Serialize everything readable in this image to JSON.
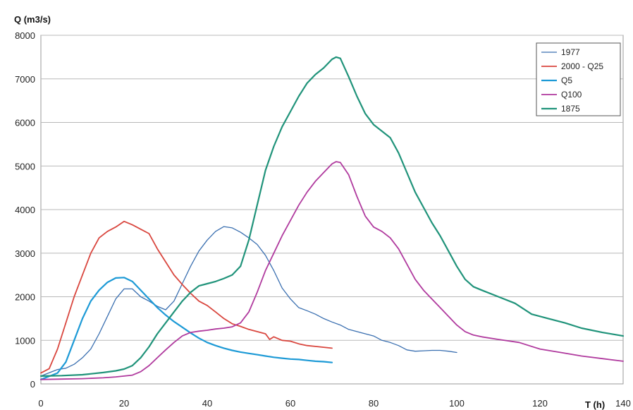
{
  "chart_data": {
    "type": "line",
    "xlabel": "T (h)",
    "ylabel": "Q (m3/s)",
    "xlim": [
      0,
      140
    ],
    "ylim": [
      0,
      8000
    ],
    "xticks": [
      0,
      20,
      40,
      60,
      80,
      100,
      120,
      140
    ],
    "yticks": [
      0,
      1000,
      2000,
      3000,
      4000,
      5000,
      6000,
      7000,
      8000
    ],
    "grid": "horizontal",
    "legend_position": "top-right",
    "series": [
      {
        "name": "1977",
        "color": "#3a6fb0",
        "width": 1.3,
        "points": [
          [
            0,
            180
          ],
          [
            4,
            330
          ],
          [
            6,
            360
          ],
          [
            8,
            450
          ],
          [
            10,
            600
          ],
          [
            12,
            800
          ],
          [
            14,
            1150
          ],
          [
            16,
            1550
          ],
          [
            18,
            1950
          ],
          [
            20,
            2180
          ],
          [
            22,
            2180
          ],
          [
            24,
            2000
          ],
          [
            26,
            1900
          ],
          [
            28,
            1780
          ],
          [
            30,
            1700
          ],
          [
            32,
            1900
          ],
          [
            34,
            2300
          ],
          [
            36,
            2700
          ],
          [
            38,
            3050
          ],
          [
            40,
            3300
          ],
          [
            42,
            3500
          ],
          [
            44,
            3610
          ],
          [
            46,
            3580
          ],
          [
            48,
            3480
          ],
          [
            50,
            3350
          ],
          [
            52,
            3200
          ],
          [
            54,
            2950
          ],
          [
            56,
            2600
          ],
          [
            58,
            2200
          ],
          [
            60,
            1950
          ],
          [
            62,
            1750
          ],
          [
            64,
            1680
          ],
          [
            66,
            1600
          ],
          [
            68,
            1500
          ],
          [
            70,
            1420
          ],
          [
            72,
            1350
          ],
          [
            74,
            1250
          ],
          [
            76,
            1200
          ],
          [
            78,
            1150
          ],
          [
            80,
            1100
          ],
          [
            82,
            1000
          ],
          [
            84,
            950
          ],
          [
            86,
            880
          ],
          [
            88,
            780
          ],
          [
            90,
            750
          ],
          [
            92,
            760
          ],
          [
            94,
            770
          ],
          [
            96,
            770
          ],
          [
            98,
            750
          ],
          [
            100,
            720
          ]
        ]
      },
      {
        "name": "2000 - Q25",
        "color": "#d9463e",
        "width": 1.8,
        "points": [
          [
            0,
            250
          ],
          [
            2,
            350
          ],
          [
            4,
            800
          ],
          [
            6,
            1400
          ],
          [
            8,
            2000
          ],
          [
            10,
            2500
          ],
          [
            12,
            3000
          ],
          [
            14,
            3350
          ],
          [
            16,
            3500
          ],
          [
            18,
            3600
          ],
          [
            20,
            3730
          ],
          [
            22,
            3650
          ],
          [
            24,
            3550
          ],
          [
            26,
            3450
          ],
          [
            28,
            3100
          ],
          [
            30,
            2800
          ],
          [
            32,
            2500
          ],
          [
            34,
            2280
          ],
          [
            36,
            2080
          ],
          [
            38,
            1900
          ],
          [
            40,
            1800
          ],
          [
            42,
            1650
          ],
          [
            44,
            1500
          ],
          [
            46,
            1380
          ],
          [
            48,
            1320
          ],
          [
            50,
            1250
          ],
          [
            52,
            1200
          ],
          [
            54,
            1150
          ],
          [
            55,
            1020
          ],
          [
            56,
            1080
          ],
          [
            58,
            1000
          ],
          [
            60,
            980
          ],
          [
            62,
            920
          ],
          [
            64,
            880
          ],
          [
            66,
            860
          ],
          [
            68,
            840
          ],
          [
            70,
            820
          ]
        ]
      },
      {
        "name": "Q5",
        "color": "#1d9ad6",
        "width": 2.2,
        "points": [
          [
            0,
            100
          ],
          [
            4,
            250
          ],
          [
            6,
            500
          ],
          [
            8,
            1000
          ],
          [
            10,
            1500
          ],
          [
            12,
            1900
          ],
          [
            14,
            2150
          ],
          [
            16,
            2330
          ],
          [
            18,
            2430
          ],
          [
            20,
            2440
          ],
          [
            22,
            2350
          ],
          [
            24,
            2150
          ],
          [
            26,
            1950
          ],
          [
            28,
            1750
          ],
          [
            30,
            1580
          ],
          [
            32,
            1430
          ],
          [
            34,
            1300
          ],
          [
            36,
            1170
          ],
          [
            38,
            1050
          ],
          [
            40,
            950
          ],
          [
            42,
            880
          ],
          [
            44,
            820
          ],
          [
            46,
            770
          ],
          [
            48,
            730
          ],
          [
            50,
            700
          ],
          [
            52,
            670
          ],
          [
            54,
            640
          ],
          [
            56,
            610
          ],
          [
            58,
            590
          ],
          [
            60,
            570
          ],
          [
            62,
            560
          ],
          [
            64,
            540
          ],
          [
            66,
            520
          ],
          [
            68,
            510
          ],
          [
            70,
            490
          ]
        ]
      },
      {
        "name": "Q100",
        "color": "#b03a9e",
        "width": 1.8,
        "points": [
          [
            0,
            100
          ],
          [
            5,
            110
          ],
          [
            10,
            120
          ],
          [
            15,
            140
          ],
          [
            18,
            160
          ],
          [
            20,
            180
          ],
          [
            22,
            200
          ],
          [
            24,
            280
          ],
          [
            26,
            420
          ],
          [
            28,
            600
          ],
          [
            30,
            780
          ],
          [
            32,
            950
          ],
          [
            34,
            1100
          ],
          [
            36,
            1180
          ],
          [
            38,
            1210
          ],
          [
            40,
            1230
          ],
          [
            42,
            1260
          ],
          [
            44,
            1280
          ],
          [
            46,
            1310
          ],
          [
            48,
            1400
          ],
          [
            50,
            1650
          ],
          [
            52,
            2100
          ],
          [
            54,
            2600
          ],
          [
            56,
            3000
          ],
          [
            58,
            3400
          ],
          [
            60,
            3750
          ],
          [
            62,
            4100
          ],
          [
            64,
            4400
          ],
          [
            66,
            4650
          ],
          [
            68,
            4850
          ],
          [
            70,
            5050
          ],
          [
            71,
            5100
          ],
          [
            72,
            5080
          ],
          [
            74,
            4800
          ],
          [
            76,
            4300
          ],
          [
            78,
            3850
          ],
          [
            80,
            3600
          ],
          [
            82,
            3500
          ],
          [
            84,
            3350
          ],
          [
            86,
            3100
          ],
          [
            88,
            2750
          ],
          [
            90,
            2400
          ],
          [
            92,
            2150
          ],
          [
            94,
            1950
          ],
          [
            96,
            1750
          ],
          [
            98,
            1550
          ],
          [
            100,
            1350
          ],
          [
            102,
            1200
          ],
          [
            104,
            1120
          ],
          [
            106,
            1080
          ],
          [
            110,
            1020
          ],
          [
            115,
            950
          ],
          [
            120,
            800
          ],
          [
            125,
            720
          ],
          [
            130,
            640
          ],
          [
            135,
            580
          ],
          [
            140,
            520
          ]
        ]
      },
      {
        "name": "1875",
        "color": "#20937a",
        "width": 2.2,
        "points": [
          [
            0,
            180
          ],
          [
            5,
            190
          ],
          [
            10,
            210
          ],
          [
            15,
            260
          ],
          [
            18,
            300
          ],
          [
            20,
            340
          ],
          [
            22,
            420
          ],
          [
            24,
            600
          ],
          [
            26,
            850
          ],
          [
            28,
            1150
          ],
          [
            30,
            1400
          ],
          [
            32,
            1650
          ],
          [
            34,
            1900
          ],
          [
            36,
            2100
          ],
          [
            38,
            2250
          ],
          [
            40,
            2300
          ],
          [
            42,
            2350
          ],
          [
            44,
            2420
          ],
          [
            46,
            2500
          ],
          [
            48,
            2700
          ],
          [
            50,
            3300
          ],
          [
            52,
            4100
          ],
          [
            54,
            4900
          ],
          [
            56,
            5450
          ],
          [
            58,
            5900
          ],
          [
            60,
            6250
          ],
          [
            62,
            6600
          ],
          [
            64,
            6900
          ],
          [
            66,
            7100
          ],
          [
            68,
            7250
          ],
          [
            70,
            7450
          ],
          [
            71,
            7500
          ],
          [
            72,
            7470
          ],
          [
            74,
            7050
          ],
          [
            76,
            6600
          ],
          [
            78,
            6200
          ],
          [
            80,
            5950
          ],
          [
            82,
            5800
          ],
          [
            84,
            5650
          ],
          [
            86,
            5300
          ],
          [
            88,
            4850
          ],
          [
            90,
            4400
          ],
          [
            92,
            4050
          ],
          [
            94,
            3700
          ],
          [
            96,
            3400
          ],
          [
            98,
            3050
          ],
          [
            100,
            2700
          ],
          [
            102,
            2400
          ],
          [
            104,
            2230
          ],
          [
            106,
            2150
          ],
          [
            110,
            2000
          ],
          [
            114,
            1850
          ],
          [
            118,
            1600
          ],
          [
            122,
            1500
          ],
          [
            126,
            1400
          ],
          [
            130,
            1280
          ],
          [
            135,
            1180
          ],
          [
            140,
            1100
          ]
        ]
      }
    ]
  }
}
